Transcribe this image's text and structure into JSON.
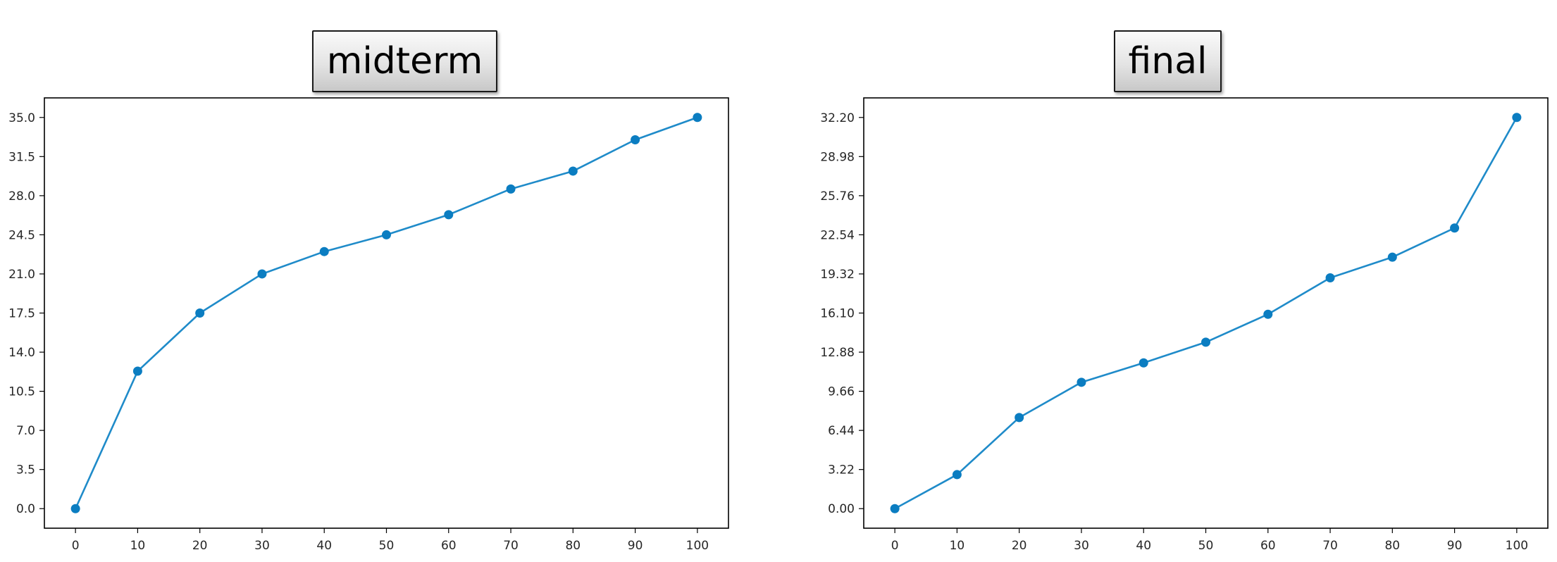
{
  "chart_data": [
    {
      "type": "line",
      "title": "midterm",
      "xlabel": "",
      "ylabel": "",
      "x": [
        0,
        10,
        20,
        30,
        40,
        50,
        60,
        70,
        80,
        90,
        100
      ],
      "series": [
        {
          "values": [
            0.0,
            12.3,
            17.5,
            21.0,
            23.0,
            24.5,
            26.3,
            28.6,
            30.2,
            33.0,
            35.0
          ]
        }
      ],
      "xticks": [
        0,
        10,
        20,
        30,
        40,
        50,
        60,
        70,
        80,
        90,
        100
      ],
      "yticks": [
        "0.0",
        "3.5",
        "7.0",
        "10.5",
        "14.0",
        "17.5",
        "21.0",
        "24.5",
        "28.0",
        "31.5",
        "35.0"
      ],
      "xlim": [
        -5,
        105
      ],
      "ylim": [
        -1.75,
        36.75
      ],
      "grid": false,
      "marker": "circle",
      "color": "#1f8bc9"
    },
    {
      "type": "line",
      "title": "final",
      "xlabel": "",
      "ylabel": "",
      "x": [
        0,
        10,
        20,
        30,
        40,
        50,
        60,
        70,
        80,
        90,
        100
      ],
      "series": [
        {
          "values": [
            0.0,
            2.8,
            7.5,
            10.4,
            12.0,
            13.7,
            16.0,
            19.0,
            20.7,
            23.1,
            32.2
          ]
        }
      ],
      "xticks": [
        0,
        10,
        20,
        30,
        40,
        50,
        60,
        70,
        80,
        90,
        100
      ],
      "yticks": [
        "0.00",
        "3.22",
        "6.44",
        "9.66",
        "12.88",
        "16.10",
        "19.32",
        "22.54",
        "25.76",
        "28.98",
        "32.20"
      ],
      "xlim": [
        -5,
        105
      ],
      "ylim": [
        -1.61,
        33.81
      ],
      "grid": false,
      "marker": "circle",
      "color": "#1f8bc9"
    }
  ]
}
